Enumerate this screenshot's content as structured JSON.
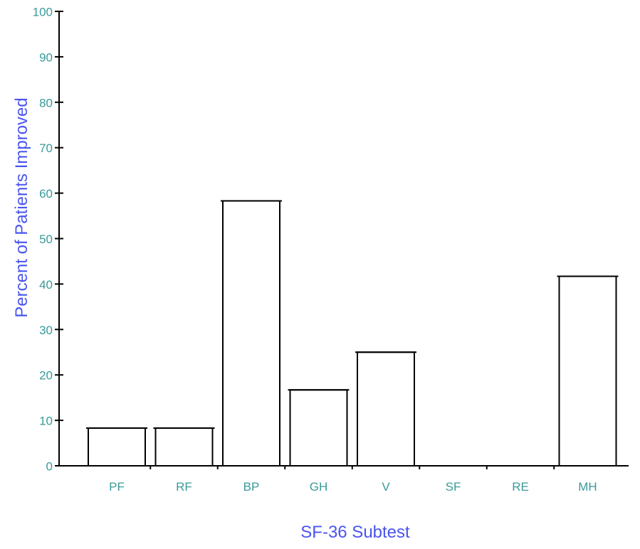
{
  "chart_data": {
    "type": "bar",
    "title": "",
    "xlabel": "SF-36 Subtest",
    "ylabel": "Percent of Patients Improved",
    "categories": [
      "PF",
      "RF",
      "BP",
      "GH",
      "V",
      "SF",
      "RE",
      "MH"
    ],
    "values": [
      8.3,
      8.3,
      58.3,
      16.7,
      25.0,
      0,
      0,
      41.7
    ],
    "ylim": [
      0,
      100
    ],
    "yticks": [
      "0",
      "10",
      "20",
      "30",
      "40",
      "50",
      "60",
      "70",
      "80",
      "90",
      "100"
    ],
    "grid": false,
    "legend": "none"
  },
  "colors": {
    "tick_label": "#3a9a9a",
    "axis_title": "#4a55ee",
    "bar_fill": "#ffffff",
    "bar_stroke": "#000000",
    "axis": "#000000"
  }
}
